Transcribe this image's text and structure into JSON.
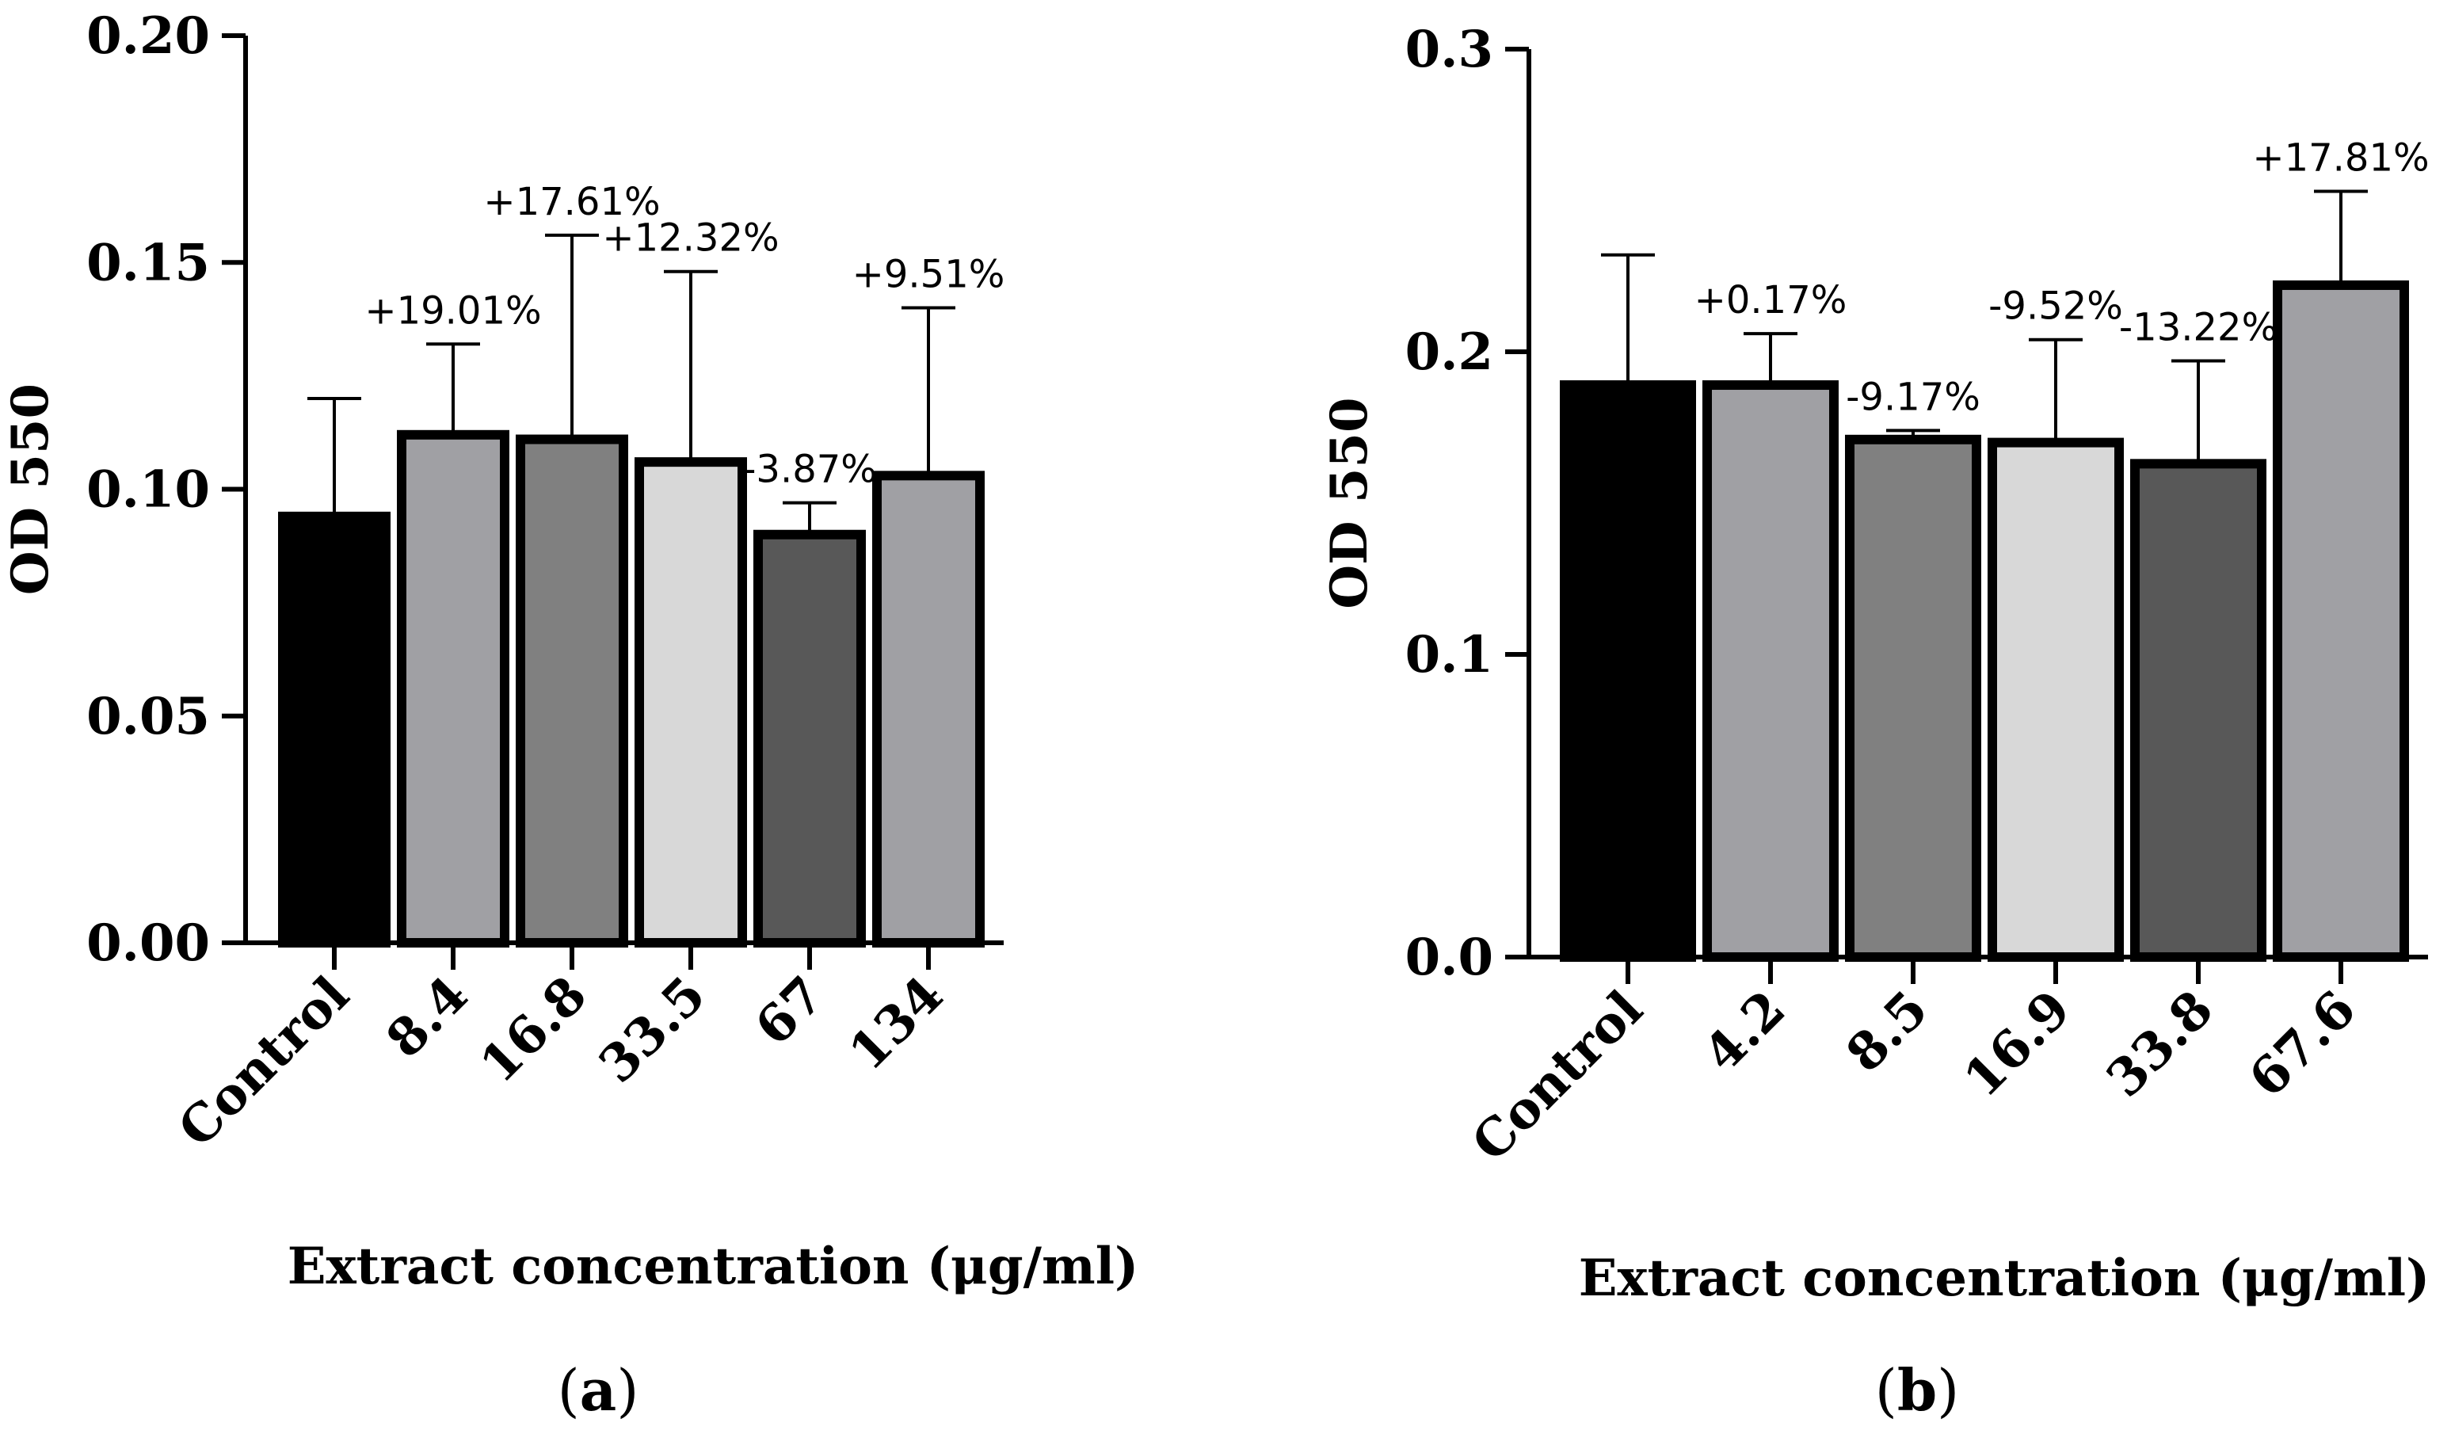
{
  "chart_data": [
    {
      "type": "bar",
      "panel_label": "a",
      "xlabel": "Extract concentration (μg/ml)",
      "ylabel": "OD 550",
      "ylim": [
        0,
        0.2
      ],
      "yticks": [
        "0.00",
        "0.05",
        "0.10",
        "0.15",
        "0.20"
      ],
      "categories": [
        "Control",
        "8.4",
        "16.8",
        "33.5",
        "67",
        "134"
      ],
      "values": [
        0.094,
        0.112,
        0.111,
        0.106,
        0.09,
        0.103
      ],
      "errors": [
        0.026,
        0.02,
        0.045,
        0.042,
        0.007,
        0.037
      ],
      "data_labels": [
        "",
        "+19.01%",
        "+17.61%",
        "+12.32%",
        "-3.87%",
        "+9.51%"
      ],
      "colors": [
        "#000000",
        "#a0a0a4",
        "#808080",
        "#d8d8d8",
        "#585858",
        "#a0a0a4"
      ]
    },
    {
      "type": "bar",
      "panel_label": "b",
      "xlabel": "Extract concentration (μg/ml)",
      "ylabel": "OD 550",
      "ylim": [
        0,
        0.3
      ],
      "yticks": [
        "0.0",
        "0.1",
        "0.2",
        "0.3"
      ],
      "categories": [
        "Control",
        "4.2",
        "8.5",
        "16.9",
        "33.8",
        "67.6"
      ],
      "values": [
        0.189,
        0.189,
        0.171,
        0.17,
        0.163,
        0.222
      ],
      "errors": [
        0.043,
        0.017,
        0.003,
        0.034,
        0.034,
        0.031
      ],
      "data_labels": [
        "",
        "+0.17%",
        "-9.17%",
        "-9.52%",
        "-13.22%",
        "+17.81%"
      ],
      "colors": [
        "#000000",
        "#a0a0a4",
        "#808080",
        "#d8d8d8",
        "#585858",
        "#a0a0a4"
      ]
    }
  ]
}
